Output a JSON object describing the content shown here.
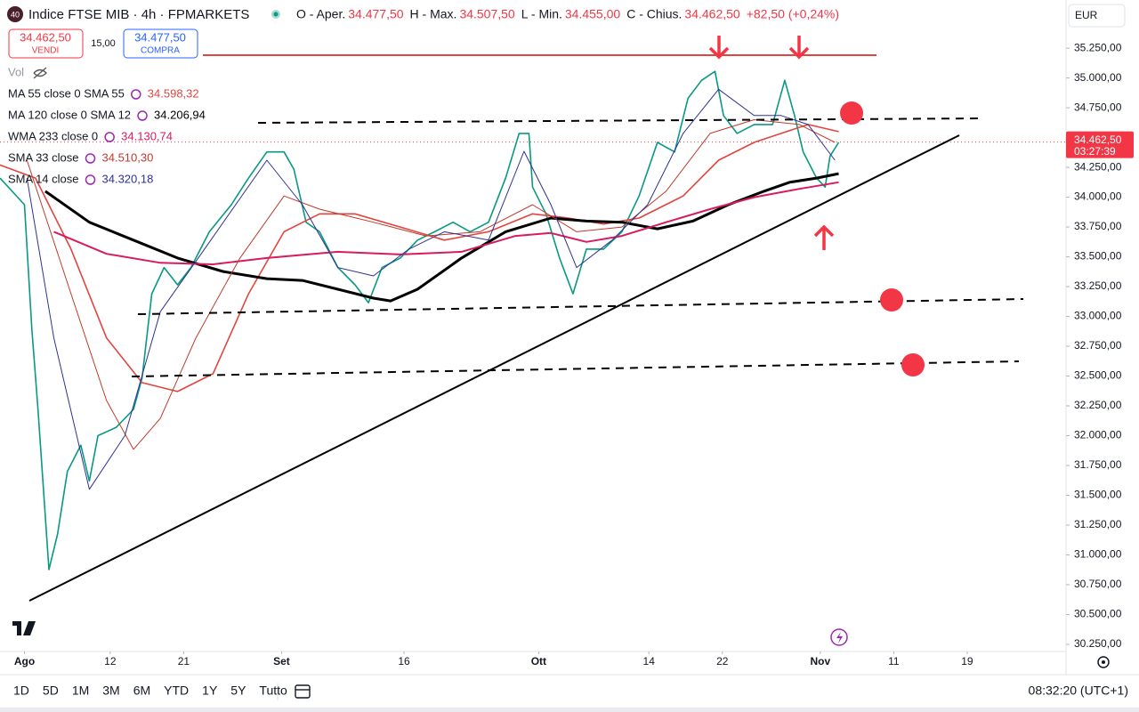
{
  "header": {
    "badge": "40",
    "title": "Indice FTSE MIB · 4h · FPMARKETS",
    "ohlc": [
      {
        "label": "O - Aper.",
        "value": "34.477,50"
      },
      {
        "label": "H - Max.",
        "value": "34.507,50"
      },
      {
        "label": "L - Min.",
        "value": "34.455,00"
      },
      {
        "label": "C - Chius.",
        "value": "34.462,50"
      }
    ],
    "change": "+82,50 (+0,24%)",
    "currency": "EUR"
  },
  "trade": {
    "sell_price": "34.462,50",
    "sell_label": "VENDI",
    "spread": "15,00",
    "buy_price": "34.477,50",
    "buy_label": "COMPRA"
  },
  "volume_label": "Vol",
  "chart_data": {
    "type": "line",
    "xlim": [
      -2,
      85
    ],
    "ylim": [
      30190,
      35430
    ],
    "xticks": [
      {
        "value": 0,
        "label": "Ago"
      },
      {
        "value": 7,
        "label": "12"
      },
      {
        "value": 13,
        "label": "21"
      },
      {
        "value": 21,
        "label": "Set"
      },
      {
        "value": 31,
        "label": "16"
      },
      {
        "value": 42,
        "label": "Ott"
      },
      {
        "value": 51,
        "label": "14"
      },
      {
        "value": 57,
        "label": "22"
      },
      {
        "value": 65,
        "label": "Nov"
      },
      {
        "value": 71,
        "label": "11"
      },
      {
        "value": 77,
        "label": "19"
      }
    ],
    "yticks": [
      {
        "value": 30250,
        "label": "30.250,00"
      },
      {
        "value": 30500,
        "label": "30.500,00"
      },
      {
        "value": 30750,
        "label": "30.750,00"
      },
      {
        "value": 31000,
        "label": "31.000,00"
      },
      {
        "value": 31250,
        "label": "31.250,00"
      },
      {
        "value": 31500,
        "label": "31.500,00"
      },
      {
        "value": 31750,
        "label": "31.750,00"
      },
      {
        "value": 32000,
        "label": "32.000,00"
      },
      {
        "value": 32250,
        "label": "32.250,00"
      },
      {
        "value": 32500,
        "label": "32.500,00"
      },
      {
        "value": 32750,
        "label": "32.750,00"
      },
      {
        "value": 33000,
        "label": "33.000,00"
      },
      {
        "value": 33250,
        "label": "33.250,00"
      },
      {
        "value": 33500,
        "label": "33.500,00"
      },
      {
        "value": 33750,
        "label": "33.750,00"
      },
      {
        "value": 34000,
        "label": "34.000,00"
      },
      {
        "value": 34250,
        "label": "34.250,00"
      },
      {
        "value": 34500,
        "label": "34.500,00"
      },
      {
        "value": 34750,
        "label": "34.750,00"
      },
      {
        "value": 35000,
        "label": "35.000,00"
      },
      {
        "value": 35250,
        "label": "35.250,00"
      }
    ],
    "last_price": 34462.5,
    "last_price_label": "34.462,50",
    "countdown": "03:27:39",
    "series": [
      {
        "color": "#089981",
        "width": 1.6,
        "x": [
          -2.0,
          0,
          0.6,
          1.1,
          2.0,
          2.7,
          3.5,
          4.6,
          5.3,
          6.0,
          7.5,
          8.9,
          9.6,
          10.4,
          11.4,
          12.5,
          13.6,
          15.1,
          16.9,
          18.3,
          19.8,
          21.2,
          22.0,
          23.0,
          24.1,
          25.6,
          27.0,
          28.1,
          29.2,
          30.7,
          32.1,
          33.5,
          35.0,
          36.4,
          37.9,
          39.3,
          40.4,
          41.2,
          41.5,
          42.6,
          43.7,
          44.8,
          45.9,
          47.3,
          48.8,
          50.2,
          51.7,
          53.1,
          54.2,
          55.3,
          56.4,
          57.1,
          58.2,
          59.6,
          61.1,
          62.1,
          62.9,
          63.6,
          64.7,
          65.4,
          65.8,
          66.5
        ],
        "values": [
          34160,
          33937,
          32892,
          32220,
          30877,
          31175,
          31700,
          31920,
          31620,
          32000,
          32070,
          32220,
          32480,
          33190,
          33410,
          33265,
          33410,
          33710,
          33937,
          34160,
          34380,
          34380,
          34235,
          33790,
          33710,
          33410,
          33265,
          33115,
          33410,
          33490,
          33640,
          33710,
          33790,
          33710,
          33790,
          34160,
          34535,
          34535,
          34085,
          33860,
          33490,
          33190,
          33565,
          33565,
          33710,
          34010,
          34460,
          34380,
          34830,
          34980,
          35055,
          34685,
          34535,
          34610,
          34610,
          34980,
          34685,
          34380,
          34160,
          34085,
          34345,
          34460
        ]
      },
      {
        "name": "MA 55 close 0 SMA 55",
        "last_label": "34.598,32",
        "color": "#e0453f",
        "width": 1.6,
        "x": [
          -2.0,
          0.9,
          3.8,
          6.7,
          9.6,
          12.5,
          15.4,
          18.3,
          21.2,
          24.1,
          27.0,
          30.7,
          34.3,
          37.9,
          41.5,
          44.4,
          47.3,
          50.2,
          53.8,
          56.7,
          59.6,
          61.8,
          64.0,
          66.5
        ],
        "values": [
          34270,
          34160,
          33565,
          32820,
          32445,
          32370,
          32520,
          33190,
          33710,
          33860,
          33860,
          33750,
          33640,
          33710,
          33860,
          33825,
          33775,
          33825,
          34010,
          34310,
          34460,
          34535,
          34610,
          34550
        ]
      },
      {
        "name": "MA 120 close 0 SMA 12",
        "last_label": "34.206,94",
        "color": "#000000",
        "width": 3,
        "x": [
          1.7,
          5.3,
          8.9,
          12.5,
          16.2,
          19.8,
          22.7,
          25.6,
          28.5,
          29.9,
          32.1,
          35.7,
          39.3,
          43.0,
          45.9,
          48.8,
          51.7,
          54.6,
          57.5,
          60.4,
          62.5,
          64.7,
          66.5
        ],
        "values": [
          34050,
          33790,
          33640,
          33490,
          33377,
          33317,
          33302,
          33228,
          33153,
          33130,
          33228,
          33490,
          33710,
          33825,
          33800,
          33790,
          33735,
          33800,
          33937,
          34050,
          34125,
          34160,
          34198
        ]
      },
      {
        "name": "WMA 233 close 0",
        "last_label": "34.130,74",
        "color": "#d81b60",
        "width": 2,
        "x": [
          2.4,
          6.7,
          11.1,
          15.4,
          19.8,
          25.6,
          30.7,
          35.7,
          40.1,
          43.0,
          45.9,
          48.8,
          52.4,
          56.0,
          59.6,
          63.3,
          66.5
        ],
        "values": [
          33710,
          33525,
          33450,
          33437,
          33490,
          33542,
          33520,
          33542,
          33675,
          33700,
          33625,
          33675,
          33790,
          33900,
          34000,
          34070,
          34125
        ]
      },
      {
        "name": "SMA 33 close",
        "last_label": "34.510,30",
        "color": "#c0392b",
        "width": 1,
        "x": [
          0.2,
          3.8,
          6.7,
          8.9,
          11.1,
          14.0,
          17.6,
          21.2,
          24.1,
          28.5,
          32.8,
          37.2,
          41.5,
          45.1,
          48.8,
          52.4,
          56.0,
          59.6,
          63.3,
          66.2
        ],
        "values": [
          34310,
          33190,
          32295,
          31885,
          32145,
          32820,
          33490,
          34010,
          33900,
          33790,
          33675,
          33710,
          33937,
          33710,
          33750,
          34050,
          34535,
          34650,
          34610,
          34460
        ]
      },
      {
        "name": "SMA 14 close",
        "last_label": "34.320,18",
        "color": "#2e3192",
        "width": 1,
        "x": [
          0.2,
          2.4,
          5.3,
          8.2,
          11.1,
          14.7,
          19.8,
          22.7,
          25.6,
          28.5,
          31.4,
          34.3,
          37.9,
          40.8,
          43.0,
          45.1,
          48.0,
          50.9,
          53.8,
          56.7,
          59.6,
          61.8,
          64.0,
          66.2
        ],
        "values": [
          34160,
          32820,
          31550,
          32000,
          33040,
          33565,
          34310,
          33937,
          33410,
          33340,
          33565,
          33710,
          33640,
          34385,
          33937,
          33410,
          33640,
          33937,
          34535,
          34905,
          34685,
          34685,
          34610,
          34310
        ]
      }
    ]
  },
  "toolbar": {
    "ranges": [
      "1D",
      "5D",
      "1M",
      "3M",
      "6M",
      "YTD",
      "1Y",
      "5Y",
      "Tutto"
    ],
    "time": "08:32:20 (UTC+1)"
  }
}
